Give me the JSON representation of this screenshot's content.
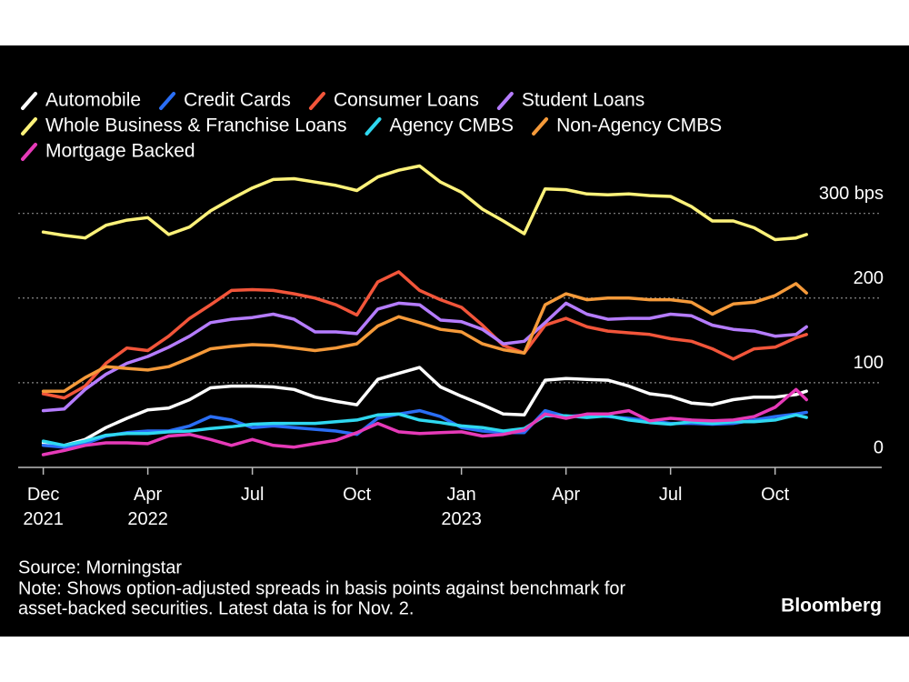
{
  "chart_data": {
    "type": "line",
    "x": [
      0,
      0.2,
      0.4,
      0.6,
      0.8,
      1,
      1.2,
      1.4,
      1.6,
      1.8,
      2,
      2.2,
      2.4,
      2.6,
      2.8,
      3,
      3.2,
      3.4,
      3.6,
      3.8,
      4,
      4.2,
      4.4,
      4.6,
      4.8,
      5,
      5.2,
      5.4,
      5.6,
      5.8,
      6,
      6.2,
      6.4,
      6.6,
      6.8,
      7,
      7.2,
      7.3
    ],
    "xlim": [
      -0.24,
      8.02
    ],
    "xticks": [
      {
        "value": 0,
        "label": "Dec\n2021"
      },
      {
        "value": 1,
        "label": "Apr\n2022"
      },
      {
        "value": 2,
        "label": "Jul"
      },
      {
        "value": 3,
        "label": "Oct"
      },
      {
        "value": 4,
        "label": "Jan\n2023"
      },
      {
        "value": 5,
        "label": "Apr"
      },
      {
        "value": 6,
        "label": "Jul"
      },
      {
        "value": 7,
        "label": "Oct"
      }
    ],
    "ylim": [
      0,
      450
    ],
    "yticks": [
      0,
      100,
      200,
      {
        "value": 300,
        "label": "300 bps"
      }
    ],
    "grid": true,
    "series": [
      {
        "name": "Automobile",
        "color": "#ffffff",
        "values": [
          29,
          26,
          33,
          47,
          58,
          68,
          70,
          80,
          94,
          96,
          96,
          95,
          92,
          83,
          78,
          74,
          104,
          111,
          118,
          95,
          84,
          74,
          63,
          62,
          103,
          105,
          104,
          103,
          96,
          87,
          84,
          76,
          74,
          80,
          83,
          83,
          86,
          90
        ]
      },
      {
        "name": "Credit Cards",
        "color": "#2a6ef5",
        "values": [
          26,
          24,
          28,
          37,
          41,
          43,
          43,
          49,
          60,
          56,
          47,
          49,
          47,
          45,
          43,
          39,
          58,
          63,
          67,
          60,
          47,
          43,
          41,
          41,
          67,
          60,
          62,
          60,
          58,
          55,
          52,
          52,
          51,
          52,
          56,
          60,
          63,
          65
        ]
      },
      {
        "name": "Consumer Loans",
        "color": "#f2553a",
        "values": [
          87,
          82,
          96,
          123,
          141,
          138,
          155,
          176,
          192,
          209,
          210,
          209,
          205,
          200,
          192,
          180,
          219,
          231,
          209,
          198,
          189,
          168,
          144,
          135,
          168,
          176,
          166,
          161,
          159,
          157,
          152,
          149,
          140,
          128,
          140,
          142,
          153,
          157
        ]
      },
      {
        "name": "Student Loans",
        "color": "#b57cff",
        "values": [
          67,
          69,
          92,
          110,
          123,
          131,
          142,
          155,
          171,
          175,
          177,
          181,
          175,
          160,
          160,
          158,
          187,
          194,
          192,
          174,
          172,
          163,
          146,
          149,
          171,
          194,
          181,
          175,
          176,
          176,
          181,
          179,
          168,
          163,
          161,
          155,
          157,
          166
        ]
      },
      {
        "name": "Whole Business & Franchise Loans",
        "color": "#fdf27a",
        "values": [
          278,
          274,
          271,
          286,
          292,
          295,
          275,
          284,
          303,
          317,
          330,
          340,
          341,
          337,
          333,
          327,
          343,
          351,
          356,
          337,
          325,
          305,
          291,
          276,
          329,
          328,
          323,
          322,
          323,
          321,
          320,
          308,
          291,
          291,
          283,
          269,
          271,
          275
        ]
      },
      {
        "name": "Agency CMBS",
        "color": "#2fd8f0",
        "values": [
          31,
          26,
          31,
          38,
          40,
          40,
          42,
          43,
          46,
          48,
          51,
          52,
          52,
          52,
          54,
          56,
          62,
          63,
          56,
          53,
          49,
          47,
          43,
          46,
          61,
          61,
          59,
          61,
          56,
          53,
          51,
          54,
          52,
          54,
          54,
          56,
          62,
          59
        ]
      },
      {
        "name": "Non-Agency CMBS",
        "color": "#f59a3a",
        "values": [
          90,
          90,
          106,
          119,
          117,
          115,
          119,
          129,
          140,
          143,
          145,
          144,
          141,
          138,
          141,
          146,
          167,
          178,
          171,
          163,
          160,
          146,
          139,
          135,
          192,
          205,
          198,
          200,
          200,
          198,
          198,
          195,
          181,
          193,
          195,
          203,
          217,
          206
        ]
      },
      {
        "name": "Mortgage Backed",
        "color": "#e63ab8",
        "values": [
          15,
          20,
          26,
          29,
          29,
          28,
          37,
          39,
          33,
          26,
          33,
          26,
          24,
          28,
          32,
          41,
          52,
          42,
          40,
          41,
          42,
          37,
          39,
          44,
          63,
          58,
          63,
          63,
          67,
          55,
          58,
          56,
          55,
          56,
          60,
          71,
          92,
          80
        ]
      }
    ],
    "source": "Source: Morningstar",
    "note": [
      "Note: Shows option-adjusted spreads in basis points against benchmark for",
      "asset-backed securities. Latest data is for Nov. 2."
    ],
    "brand": "Bloomberg"
  }
}
